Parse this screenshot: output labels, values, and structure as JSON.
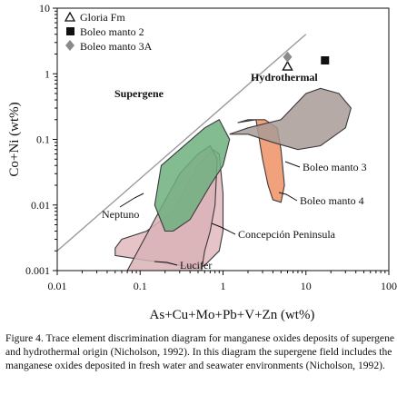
{
  "chart_data": {
    "type": "scatter",
    "xlabel": "As+Cu+Mo+Pb+V+Zn (wt%)",
    "ylabel": "Co+Ni (wt%)",
    "x_scale": "log",
    "y_scale": "log",
    "xlim": [
      0.01,
      100
    ],
    "ylim": [
      0.001,
      10
    ],
    "x_ticks": [
      "0.01",
      "0.1",
      "1",
      "10",
      "100"
    ],
    "y_ticks": [
      "0.001",
      "0.01",
      "0.1",
      "1",
      "10"
    ],
    "grid": false,
    "legend_position": "top-left",
    "series": [
      {
        "name": "Gloria Fm",
        "marker": "open-triangle",
        "points": [
          [
            6.0,
            1.3
          ]
        ]
      },
      {
        "name": "Boleo manto 2",
        "marker": "filled-square",
        "points": [
          [
            17,
            1.6
          ]
        ]
      },
      {
        "name": "Boleo manto 3A",
        "marker": "filled-diamond",
        "points": [
          [
            6.0,
            1.8
          ]
        ]
      }
    ],
    "fields": [
      {
        "label": "Lucifer",
        "color": "#e2b9bd",
        "polygon": [
          [
            0.05,
            0.0017
          ],
          [
            0.2,
            0.0013
          ],
          [
            0.5,
            0.0011
          ],
          [
            0.6,
            0.0012
          ],
          [
            0.9,
            0.002
          ],
          [
            1.0,
            0.004
          ],
          [
            1.0,
            0.015
          ],
          [
            0.9,
            0.06
          ],
          [
            0.75,
            0.07
          ],
          [
            0.5,
            0.04
          ],
          [
            0.25,
            0.008
          ],
          [
            0.12,
            0.004
          ],
          [
            0.06,
            0.003
          ],
          [
            0.05,
            0.0022
          ]
        ]
      },
      {
        "label": "Concepción Peninsula",
        "color": "#d8b3b6",
        "polygon": [
          [
            0.07,
            0.001
          ],
          [
            0.15,
            0.006
          ],
          [
            0.3,
            0.03
          ],
          [
            0.5,
            0.06
          ],
          [
            0.7,
            0.08
          ],
          [
            0.85,
            0.05
          ],
          [
            0.8,
            0.01
          ],
          [
            0.7,
            0.004
          ],
          [
            0.6,
            0.002
          ],
          [
            0.55,
            0.001
          ]
        ]
      },
      {
        "label": "Neptuno",
        "color": "#6fb07f",
        "polygon": [
          [
            0.2,
            0.004
          ],
          [
            0.15,
            0.01
          ],
          [
            0.18,
            0.04
          ],
          [
            0.3,
            0.07
          ],
          [
            0.6,
            0.15
          ],
          [
            0.9,
            0.2
          ],
          [
            1.2,
            0.1
          ],
          [
            1.0,
            0.04
          ],
          [
            0.7,
            0.02
          ],
          [
            0.4,
            0.006
          ],
          [
            0.25,
            0.004
          ]
        ]
      },
      {
        "label": "Boleo manto 4",
        "color": "#ee9266",
        "polygon": [
          [
            1.5,
            0.18
          ],
          [
            2.5,
            0.2
          ],
          [
            3.0,
            0.05
          ],
          [
            3.5,
            0.02
          ],
          [
            4.0,
            0.012
          ],
          [
            5.0,
            0.011
          ],
          [
            5.5,
            0.02
          ],
          [
            5.0,
            0.07
          ],
          [
            4.5,
            0.15
          ],
          [
            3.2,
            0.2
          ],
          [
            2.0,
            0.2
          ]
        ]
      },
      {
        "label": "Boleo manto 3",
        "color": "#a99b97",
        "polygon": [
          [
            1.2,
            0.12
          ],
          [
            2.0,
            0.12
          ],
          [
            4.0,
            0.09
          ],
          [
            8.0,
            0.07
          ],
          [
            15,
            0.08
          ],
          [
            30,
            0.15
          ],
          [
            35,
            0.3
          ],
          [
            25,
            0.5
          ],
          [
            15,
            0.6
          ],
          [
            10,
            0.5
          ],
          [
            5,
            0.2
          ],
          [
            2,
            0.15
          ]
        ]
      }
    ],
    "region_labels": [
      "Supergene",
      "Hydrothermal"
    ],
    "boundary_line": [
      [
        0.01,
        0.002
      ],
      [
        10,
        4
      ]
    ]
  },
  "legend": {
    "items": [
      {
        "label": "Gloria Fm"
      },
      {
        "label": "Boleo manto 2"
      },
      {
        "label": "Boleo manto 3A"
      }
    ]
  },
  "caption": "Figure 4. Trace element discrimination diagram for manganese oxides deposits of supergene and hydrothermal origin (Nicholson, 1992). In this diagram the supergene field includes the manganese oxides deposited in fresh water and seawater environments (Nicholson, 1992)."
}
